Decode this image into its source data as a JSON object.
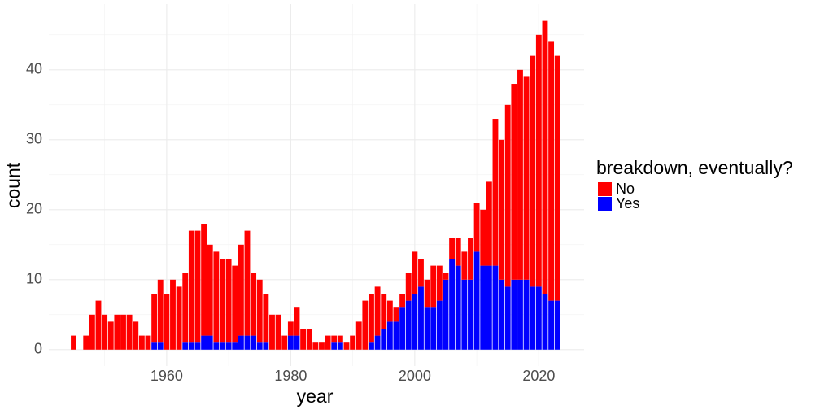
{
  "chart_data": {
    "type": "stacked-bar",
    "x_label": "year",
    "y_label": "count",
    "legend_title": "breakdown, eventually?",
    "x": [
      1945,
      1946,
      1947,
      1948,
      1949,
      1950,
      1951,
      1952,
      1953,
      1954,
      1955,
      1956,
      1957,
      1958,
      1959,
      1960,
      1961,
      1962,
      1963,
      1964,
      1965,
      1966,
      1967,
      1968,
      1969,
      1970,
      1971,
      1972,
      1973,
      1974,
      1975,
      1976,
      1977,
      1978,
      1979,
      1980,
      1981,
      1982,
      1983,
      1984,
      1985,
      1986,
      1987,
      1988,
      1989,
      1990,
      1991,
      1992,
      1993,
      1994,
      1995,
      1996,
      1997,
      1998,
      1999,
      2000,
      2001,
      2002,
      2003,
      2004,
      2005,
      2006,
      2007,
      2008,
      2009,
      2010,
      2011,
      2012,
      2013,
      2014,
      2015,
      2016,
      2017,
      2018,
      2019,
      2020,
      2021,
      2022,
      2023
    ],
    "series": [
      {
        "name": "No",
        "color": "#ff0000",
        "values": [
          2,
          0,
          2,
          5,
          7,
          5,
          4,
          5,
          5,
          5,
          4,
          2,
          2,
          7,
          9,
          8,
          10,
          9,
          10,
          16,
          16,
          16,
          13,
          13,
          12,
          12,
          11,
          13,
          15,
          9,
          9,
          7,
          5,
          5,
          2,
          2,
          4,
          3,
          3,
          1,
          1,
          2,
          1,
          1,
          1,
          2,
          4,
          7,
          7,
          7,
          5,
          3,
          2,
          2,
          4,
          6,
          4,
          4,
          6,
          5,
          1,
          3,
          4,
          4,
          6,
          7,
          8,
          12,
          21,
          20,
          26,
          28,
          30,
          29,
          33,
          36,
          39,
          37,
          35
        ]
      },
      {
        "name": "Yes",
        "color": "#0000ff",
        "values": [
          0,
          0,
          0,
          0,
          0,
          0,
          0,
          0,
          0,
          0,
          0,
          0,
          0,
          1,
          1,
          0,
          0,
          0,
          1,
          1,
          1,
          2,
          2,
          1,
          1,
          1,
          1,
          2,
          2,
          2,
          1,
          1,
          0,
          0,
          0,
          2,
          2,
          0,
          0,
          0,
          0,
          0,
          1,
          1,
          0,
          0,
          0,
          0,
          1,
          2,
          3,
          4,
          4,
          6,
          7,
          8,
          9,
          6,
          6,
          7,
          10,
          13,
          12,
          10,
          10,
          14,
          12,
          12,
          12,
          10,
          9,
          10,
          10,
          10,
          9,
          9,
          8,
          7,
          7
        ]
      }
    ],
    "xlim": [
      1941,
      2027.3
    ],
    "ylim": [
      -2.35,
      49.4
    ],
    "xticks": [
      1960,
      1980,
      2000,
      2020
    ],
    "yticks": [
      0,
      10,
      20,
      30,
      40
    ],
    "x_minor_ticks": [
      1950,
      1970,
      1990,
      2010
    ],
    "y_minor_ticks": [
      5,
      15,
      25,
      35,
      45
    ],
    "grid": true
  }
}
